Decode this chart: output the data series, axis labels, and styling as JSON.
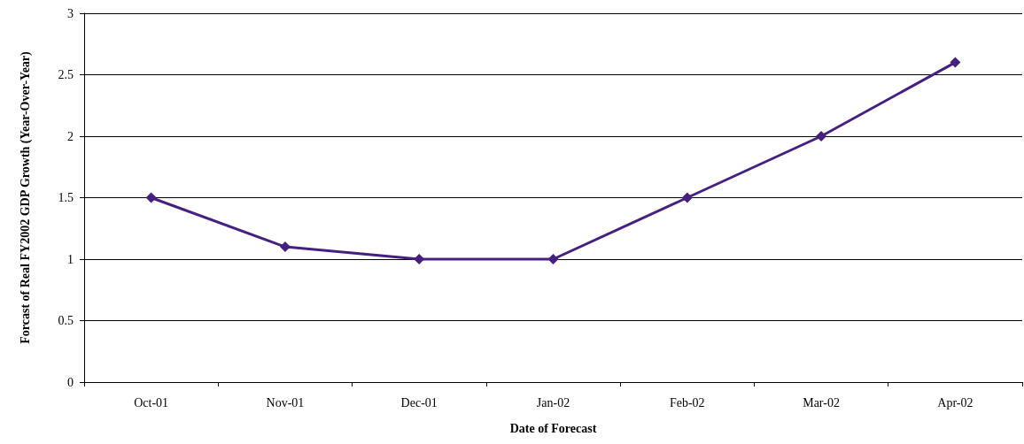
{
  "chart_data": {
    "type": "line",
    "xlabel": "Date of Forecast",
    "ylabel": "Forcast of Real FY2002 GDP Growth (Year-Over-Year)",
    "categories": [
      "Oct-01",
      "Nov-01",
      "Dec-01",
      "Jan-02",
      "Feb-02",
      "Mar-02",
      "Apr-02"
    ],
    "series": [
      {
        "color": "#45207f",
        "values": [
          1.5,
          1.1,
          1.0,
          1.0,
          1.5,
          2.0,
          2.6
        ]
      }
    ],
    "ylim": [
      0,
      3
    ],
    "yticks": [
      0,
      0.5,
      1,
      1.5,
      2,
      2.5,
      3
    ],
    "grid": "y",
    "marker": "diamond",
    "line_style": "solid"
  }
}
